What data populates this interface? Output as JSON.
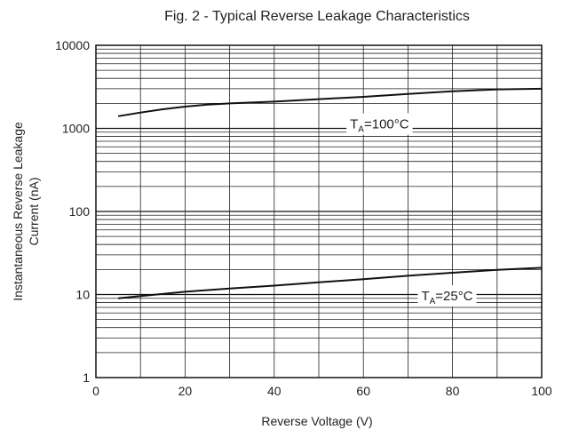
{
  "chart_data": {
    "type": "line",
    "title": "Fig. 2 - Typical Reverse Leakage Characteristics",
    "xlabel": "Reverse Voltage (V)",
    "ylabel_lines": [
      "Instantaneous Reverse Leakage",
      "Current (nA)"
    ],
    "x_scale": "linear",
    "y_scale": "log",
    "xlim": [
      0,
      100
    ],
    "ylim": [
      1,
      10000
    ],
    "grid": true,
    "x_ticks": [
      0,
      20,
      40,
      60,
      80,
      100
    ],
    "x_tick_labels": [
      "0",
      "20",
      "40",
      "60",
      "80",
      "100"
    ],
    "y_ticks": [
      1,
      10,
      100,
      1000,
      10000
    ],
    "y_tick_labels": [
      "1",
      "10",
      "100",
      "1000",
      "10000"
    ],
    "series": [
      {
        "name": "TA=100°C",
        "label_main": "T",
        "label_sub": "A",
        "label_rest": "=100°C",
        "label_at": [
          57,
          1000
        ],
        "x": [
          5,
          10,
          15,
          20,
          25,
          30,
          40,
          50,
          60,
          70,
          80,
          90,
          100
        ],
        "values": [
          1400,
          1550,
          1700,
          1830,
          1930,
          2000,
          2100,
          2250,
          2400,
          2600,
          2800,
          2950,
          3000
        ]
      },
      {
        "name": "TA=25°C",
        "label_main": "T",
        "label_sub": "A",
        "label_rest": "=25°C",
        "label_at": [
          73,
          8.5
        ],
        "x": [
          5,
          10,
          20,
          30,
          40,
          50,
          60,
          70,
          80,
          90,
          100
        ],
        "values": [
          9,
          9.6,
          10.8,
          11.8,
          12.8,
          14,
          15.3,
          16.8,
          18.3,
          19.8,
          21
        ]
      }
    ]
  }
}
